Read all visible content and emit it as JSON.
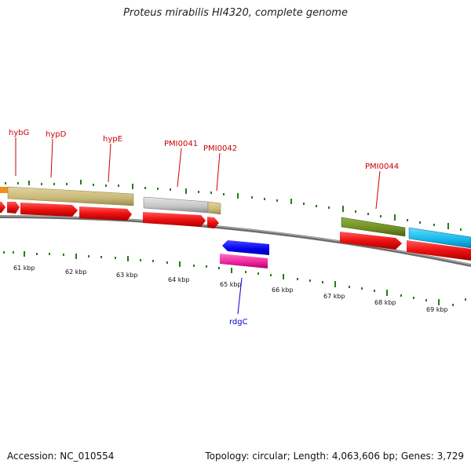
{
  "title": "Proteus mirabilis HI4320, complete genome",
  "accession": "Accession: NC_010554",
  "summary": "Topology: circular; Length: 4,063,606 bp; Genes: 3,729",
  "kbp_labels": [
    "61 kbp",
    "62 kbp",
    "63 kbp",
    "64 kbp",
    "65 kbp",
    "66 kbp",
    "67 kbp",
    "68 kbp",
    "69 kbp"
  ],
  "gene_labels": {
    "hybG": "hybG",
    "hypD": "hypD",
    "hypE": "hypE",
    "PMI0041": "PMI0041",
    "PMI0042": "PMI0042",
    "PMI0044": "PMI0044",
    "rdgC": "rdgC"
  },
  "colors": {
    "forward_label": "#cc0000",
    "reverse_label": "#0000cc",
    "cds": "#ee1111",
    "tan": "#c8b878",
    "gray": "#c0c0c0",
    "olive": "#6f8e22",
    "cyan": "#11b8e8",
    "blue": "#0000ee",
    "pink": "#ee2299",
    "orange": "#f09020",
    "ticks": "#2a7a1a",
    "backbone": "#888888"
  }
}
